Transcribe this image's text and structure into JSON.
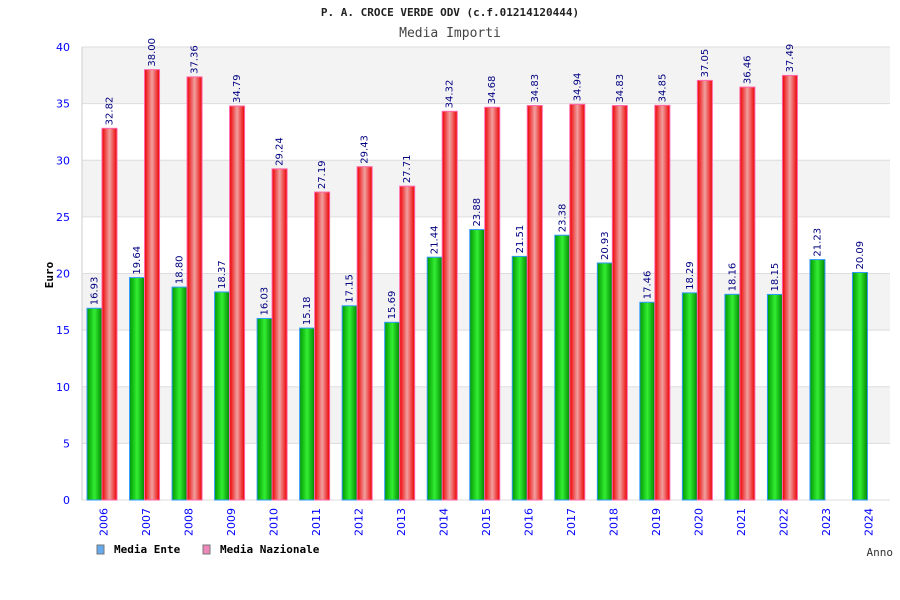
{
  "chart_data": {
    "type": "bar",
    "title": "P. A. CROCE VERDE ODV (c.f.01214120444)",
    "subtitle": "Media Importi",
    "xlabel": "Anno",
    "ylabel": "Euro",
    "ylim": [
      0,
      40
    ],
    "yticks": [
      0,
      5,
      10,
      15,
      20,
      25,
      30,
      35,
      40
    ],
    "grid": true,
    "legend_position": "bottom-left",
    "categories": [
      "2006",
      "2007",
      "2008",
      "2009",
      "2010",
      "2011",
      "2012",
      "2013",
      "2014",
      "2015",
      "2016",
      "2017",
      "2018",
      "2019",
      "2020",
      "2021",
      "2022",
      "2023",
      "2024"
    ],
    "series": [
      {
        "name": "Media Ente",
        "color": "#00cc00",
        "legend_color": "#66aaee",
        "values": [
          16.93,
          19.64,
          18.8,
          18.37,
          16.03,
          15.18,
          17.15,
          15.69,
          21.44,
          23.88,
          21.51,
          23.38,
          20.93,
          17.46,
          18.29,
          18.16,
          18.15,
          21.23,
          20.09
        ]
      },
      {
        "name": "Media Nazionale",
        "color": "#ee2222",
        "legend_color": "#ee88bb",
        "values": [
          32.82,
          38.0,
          37.36,
          34.79,
          29.24,
          27.19,
          29.43,
          27.71,
          34.32,
          34.68,
          34.83,
          34.94,
          34.83,
          34.85,
          37.05,
          36.46,
          37.49,
          null,
          null
        ]
      }
    ]
  }
}
